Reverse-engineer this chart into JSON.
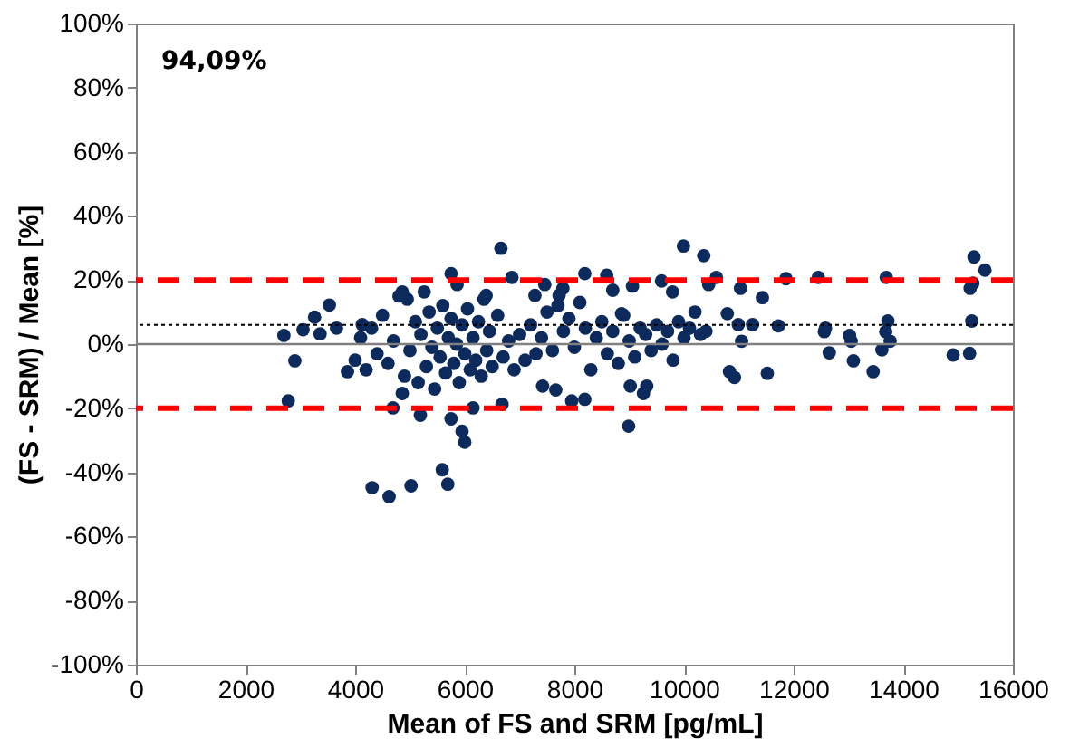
{
  "chart_data": {
    "type": "scatter",
    "xlabel": "Mean of FS and SRM [pg/mL]",
    "ylabel": "(FS - SRM) / Mean [%]",
    "annotations": [
      "94,09%"
    ],
    "marker": "circle",
    "grid": false,
    "xlim": [
      0,
      16000
    ],
    "xticks": [
      0,
      2000,
      4000,
      6000,
      8000,
      10000,
      12000,
      14000,
      16000
    ],
    "ylim": [
      -100,
      100
    ],
    "yticks": [
      {
        "value": -100,
        "label": "-100%"
      },
      {
        "value": -80,
        "label": "-80%"
      },
      {
        "value": -60,
        "label": "-60%"
      },
      {
        "value": -40,
        "label": "-40%"
      },
      {
        "value": -20,
        "label": "-20%"
      },
      {
        "value": 0,
        "label": "0%"
      },
      {
        "value": 20,
        "label": "20%"
      },
      {
        "value": 40,
        "label": "40%"
      },
      {
        "value": 60,
        "label": "60%"
      },
      {
        "value": 80,
        "label": "80%"
      },
      {
        "value": 100,
        "label": "100%"
      }
    ],
    "ref_lines": [
      {
        "axis": "y",
        "value": 0,
        "color": "#808080",
        "line_style": "solid"
      },
      {
        "axis": "y",
        "value": 20,
        "color": "#ff0000",
        "line_style": "dashed"
      },
      {
        "axis": "y",
        "value": -20,
        "color": "#ff0000",
        "line_style": "dashed"
      },
      {
        "axis": "y",
        "value": 6,
        "color": "#000000",
        "line_style": "dotted"
      }
    ],
    "series": [
      {
        "color": "#0d2a5c",
        "x": [
          2700,
          2780,
          2900,
          3050,
          3260,
          3360,
          3530,
          3660,
          3860,
          4130,
          4690,
          4310,
          4620,
          5020,
          4860,
          5190,
          5590,
          5690,
          5750,
          5950,
          6000,
          6150,
          5750,
          5860,
          4860,
          5260,
          6390,
          6660,
          6860,
          6680,
          7280,
          7460,
          7420,
          7660,
          7720,
          7790,
          8190,
          7950,
          8190,
          8590,
          8700,
          8860,
          8990,
          9060,
          9020,
          9260,
          9320,
          9590,
          9790,
          9990,
          10360,
          10450,
          10590,
          10790,
          10830,
          10920,
          11030,
          10990,
          11050,
          11250,
          11430,
          11520,
          11720,
          11860,
          12450,
          12560,
          12580,
          12650,
          13020,
          13050,
          13090,
          13450,
          13610,
          13690,
          13720,
          13680,
          13760,
          14910,
          15210,
          15250,
          15220,
          15270,
          15290,
          15490,
          4000,
          4100,
          4200,
          4300,
          4400,
          4500,
          4600,
          4700,
          4800,
          4900,
          4950,
          5000,
          5100,
          5150,
          5200,
          5300,
          5350,
          5400,
          5450,
          5500,
          5550,
          5600,
          5650,
          5700,
          5750,
          5800,
          5850,
          5900,
          5950,
          6000,
          6050,
          6100,
          6150,
          6200,
          6250,
          6300,
          6350,
          6400,
          6450,
          6500,
          6600,
          6700,
          6800,
          6900,
          7000,
          7100,
          7200,
          7300,
          7400,
          7500,
          7600,
          7700,
          7800,
          7900,
          8000,
          8100,
          8200,
          8300,
          8400,
          8500,
          8600,
          8700,
          8800,
          8900,
          9000,
          9100,
          9200,
          9300,
          9400,
          9500,
          9600,
          9700,
          9800,
          9900,
          10000,
          10100,
          10200,
          10300,
          10400
        ],
        "values": [
          2.7,
          -17.7,
          -5.2,
          4.5,
          8.4,
          3.2,
          12.2,
          5,
          -8.6,
          6.1,
          -19.9,
          -44.8,
          -47.6,
          -44.2,
          -15.4,
          -22.2,
          -39.2,
          -43.7,
          -23.3,
          -27.2,
          -30.6,
          -19.9,
          22,
          18.6,
          16.3,
          16.3,
          15.2,
          29.9,
          20.8,
          -18.8,
          15.2,
          18.6,
          -13.1,
          -14.3,
          15.2,
          17.4,
          22,
          -17.7,
          -17.2,
          21.5,
          16.8,
          9.5,
          -25.6,
          18.1,
          -13.1,
          -15.4,
          -13.1,
          19.7,
          16.3,
          30.6,
          27.6,
          18.6,
          20.8,
          9.5,
          -8.6,
          -10.4,
          17.4,
          6.1,
          0.9,
          6.1,
          14.5,
          -9.1,
          5.7,
          20.4,
          20.8,
          3.9,
          5,
          -2.7,
          2.7,
          0.9,
          -5.2,
          -8.6,
          -1.8,
          20.8,
          7.2,
          3.9,
          0.9,
          -3.4,
          -2.9,
          7.2,
          17.4,
          19,
          27.2,
          23.1,
          -5,
          2,
          -8,
          5,
          -3,
          9,
          -6,
          1,
          15,
          -10,
          14,
          -2,
          7,
          -12,
          3,
          -7,
          10,
          -1,
          -14,
          5,
          -4,
          12,
          -9,
          2,
          8,
          -6,
          0,
          -12,
          6,
          -3,
          11,
          -8,
          2,
          -5,
          7,
          -10,
          14,
          -2,
          4,
          -7,
          9,
          -4,
          1,
          -8,
          3,
          -5,
          6,
          -3,
          2,
          10,
          -2,
          12,
          4,
          8,
          -1,
          13,
          5,
          -8,
          2,
          7,
          -3,
          4,
          -6,
          9,
          1,
          -4,
          5,
          3,
          -2,
          6,
          0,
          4,
          -5,
          7,
          2,
          5,
          10,
          3,
          4
        ]
      }
    ]
  }
}
